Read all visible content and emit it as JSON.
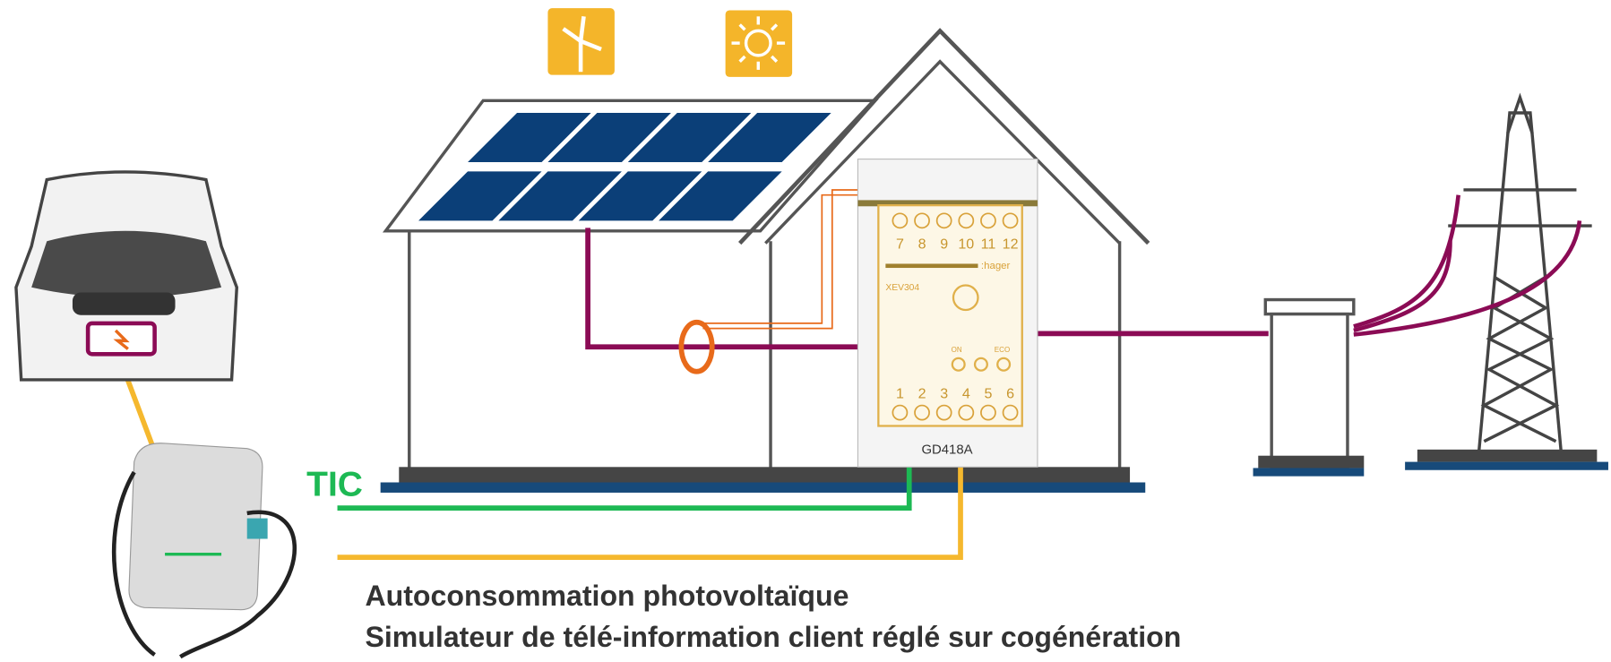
{
  "labels": {
    "tic": "TIC",
    "brand": ":hager",
    "model": "XEV304",
    "on": "ON",
    "eco": "ECO",
    "module": "GD418A"
  },
  "terminals_top": [
    "7",
    "8",
    "9",
    "10",
    "11",
    "12"
  ],
  "terminals_bottom": [
    "1",
    "2",
    "3",
    "4",
    "5",
    "6"
  ],
  "caption": [
    "Autoconsommation photovoltaïque",
    "Simulateur de télé-information client réglé sur cogénération"
  ]
}
